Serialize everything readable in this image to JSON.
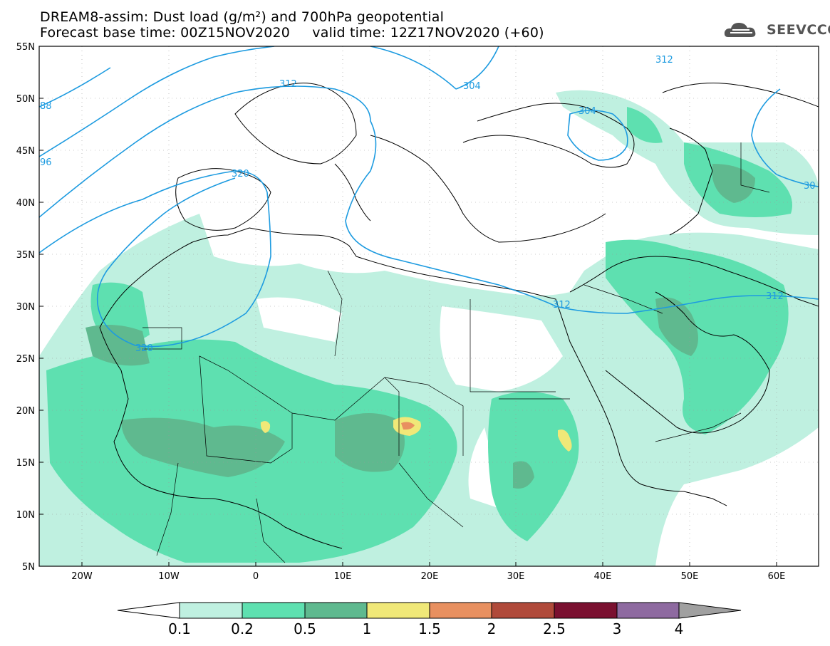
{
  "header": {
    "title_line1": "DREAM8-assim: Dust load (g/m²) and 700hPa geopotential",
    "title_line2": "Forecast base time: 00Z15NOV2020     valid time: 12Z17NOV2020 (+60)",
    "logo_text": "SEEVCCC",
    "logo_icon": "cloud-icon"
  },
  "map": {
    "lat_labels": [
      "55N",
      "50N",
      "45N",
      "40N",
      "35N",
      "30N",
      "25N",
      "20N",
      "15N",
      "10N",
      "5N"
    ],
    "lon_labels": [
      "20W",
      "10W",
      "0",
      "10E",
      "20E",
      "30E",
      "40E",
      "50E",
      "60E"
    ],
    "contour_labels": [
      "312",
      "304",
      "304",
      "312",
      "88",
      "96",
      "320",
      "320",
      "312",
      "30",
      "312"
    ],
    "contour_color": "#1d9be0"
  },
  "colorbar": {
    "labels": [
      "0.1",
      "0.2",
      "0.5",
      "1",
      "1.5",
      "2",
      "2.5",
      "3",
      "4"
    ],
    "colors": [
      "#ffffff",
      "#bff0e0",
      "#5ee0b0",
      "#5fb98f",
      "#f0e878",
      "#e89060",
      "#b04a3a",
      "#7a1030",
      "#8e6aa0",
      "#a0a0a0"
    ]
  }
}
